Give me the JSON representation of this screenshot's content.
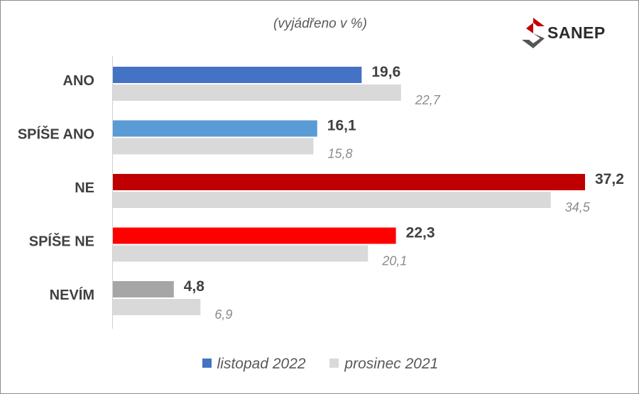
{
  "subtitle": "(vyjádřeno v %)",
  "logo": {
    "text": "SANEP"
  },
  "chart_data": {
    "type": "bar",
    "orientation": "horizontal",
    "categories": [
      "ANO",
      "SPÍŠE ANO",
      "NE",
      "SPÍŠE NE",
      "NEVÍM"
    ],
    "series": [
      {
        "name": "listopad 2022",
        "values": [
          19.6,
          16.1,
          37.2,
          22.3,
          4.8
        ],
        "labels": [
          "19,6",
          "16,1",
          "37,2",
          "22,3",
          "4,8"
        ],
        "colors": [
          "#4472c4",
          "#5b9bd5",
          "#c00000",
          "#ff0000",
          "#a6a6a6"
        ]
      },
      {
        "name": "prosinec 2021",
        "values": [
          22.7,
          15.8,
          34.5,
          20.1,
          6.9
        ],
        "labels": [
          "22,7",
          "15,8",
          "34,5",
          "20,1",
          "6,9"
        ],
        "color": "#d9d9d9"
      }
    ],
    "xlim": [
      0,
      38
    ],
    "grid": false,
    "legend_position": "bottom"
  },
  "legend": [
    {
      "label": "listopad 2022",
      "color": "#4472c4"
    },
    {
      "label": "prosinec 2021",
      "color": "#d9d9d9"
    }
  ]
}
